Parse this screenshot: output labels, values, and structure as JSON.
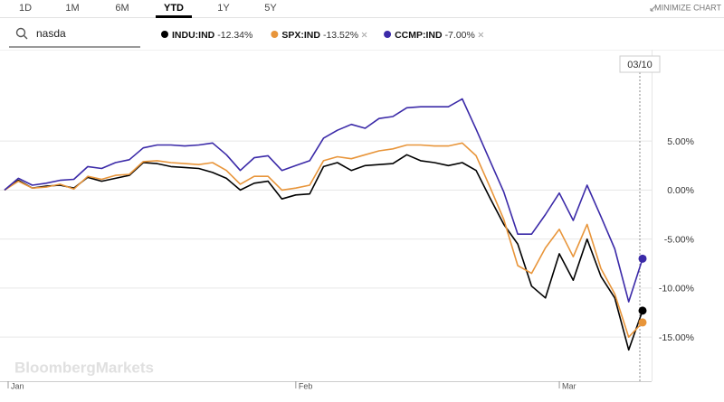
{
  "toolbar": {
    "tabs": [
      "1D",
      "1M",
      "6M",
      "YTD",
      "1Y",
      "5Y"
    ],
    "selected_tab": 3,
    "minimize": "MINIMIZE CHART"
  },
  "search": {
    "query": "nasda"
  },
  "watermark": "BloombergMarkets",
  "chart_data": {
    "type": "line",
    "categories": [
      "Jan",
      null,
      null,
      null,
      null,
      null,
      null,
      null,
      null,
      null,
      null,
      null,
      null,
      null,
      null,
      null,
      null,
      null,
      null,
      null,
      null,
      "Feb",
      null,
      null,
      null,
      null,
      null,
      null,
      null,
      null,
      null,
      null,
      null,
      null,
      null,
      null,
      null,
      null,
      null,
      null,
      "Mar",
      null,
      null,
      null,
      null,
      null,
      null
    ],
    "crosshair_label": "03/10",
    "series": [
      {
        "name": "INDU:IND",
        "change_label": "-12.34%",
        "color": "#000000",
        "removable": false,
        "values": [
          0,
          1.0,
          0.2,
          0.4,
          0.5,
          0.2,
          1.3,
          0.9,
          1.2,
          1.5,
          2.8,
          2.7,
          2.4,
          2.3,
          2.2,
          1.8,
          1.2,
          0.0,
          0.7,
          0.9,
          -0.9,
          -0.5,
          -0.4,
          2.4,
          2.8,
          2.0,
          2.5,
          2.6,
          2.7,
          3.6,
          3.0,
          2.8,
          2.5,
          2.8,
          2.0,
          -0.8,
          -3.5,
          -5.5,
          -9.8,
          -11.0,
          -6.5,
          -9.2,
          -5.0,
          -8.8,
          -11.0,
          -16.3,
          -12.3
        ]
      },
      {
        "name": "SPX:IND",
        "change_label": "-13.52%",
        "color": "#e8953a",
        "removable": true,
        "values": [
          0,
          0.9,
          0.2,
          0.3,
          0.6,
          0.1,
          1.4,
          1.1,
          1.5,
          1.6,
          2.9,
          3.0,
          2.8,
          2.7,
          2.6,
          2.8,
          2.0,
          0.6,
          1.4,
          1.4,
          0.0,
          0.2,
          0.5,
          3.0,
          3.4,
          3.2,
          3.6,
          4.0,
          4.2,
          4.6,
          4.6,
          4.5,
          4.5,
          4.8,
          3.5,
          0.3,
          -3.0,
          -7.7,
          -8.5,
          -5.9,
          -4.0,
          -6.8,
          -3.5,
          -8.0,
          -10.6,
          -15.0,
          -13.5
        ]
      },
      {
        "name": "CCMP:IND",
        "change_label": "-7.00%",
        "color": "#3b2aa8",
        "removable": true,
        "values": [
          0,
          1.2,
          0.5,
          0.7,
          1.0,
          1.1,
          2.4,
          2.2,
          2.8,
          3.1,
          4.3,
          4.6,
          4.6,
          4.5,
          4.6,
          4.8,
          3.6,
          2.0,
          3.3,
          3.5,
          2.0,
          2.5,
          3.0,
          5.3,
          6.1,
          6.7,
          6.3,
          7.3,
          7.5,
          8.4,
          8.5,
          8.5,
          8.5,
          9.3,
          6.2,
          3.0,
          -0.2,
          -4.5,
          -4.5,
          -2.5,
          -0.3,
          -3.1,
          0.5,
          -2.7,
          -6.0,
          -11.4,
          -7.0
        ]
      }
    ],
    "ylim": [
      -19.5,
      13.4
    ],
    "yticks": [
      {
        "value": 5,
        "label": "5.00%"
      },
      {
        "value": 0,
        "label": "0.00%"
      },
      {
        "value": -5,
        "label": "-5.00%"
      },
      {
        "value": -10,
        "label": "-10.00%"
      },
      {
        "value": -15,
        "label": "-15.00%"
      }
    ],
    "grid": true
  }
}
